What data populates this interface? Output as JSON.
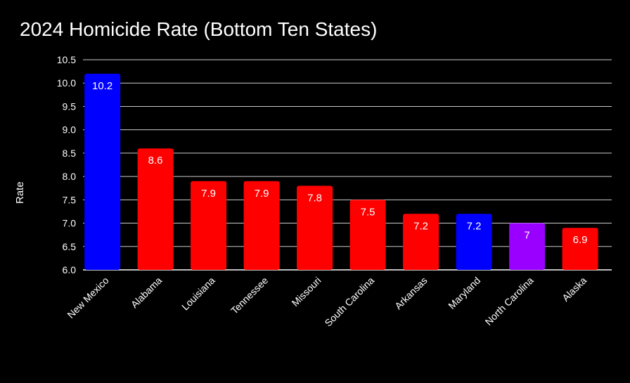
{
  "chart_data": {
    "type": "bar",
    "title": "2024 Homicide Rate (Bottom Ten States)",
    "xlabel": "",
    "ylabel": "Rate",
    "ylim": [
      6.0,
      10.5
    ],
    "yticks": [
      "6.0",
      "6.5",
      "7.0",
      "7.5",
      "8.0",
      "8.5",
      "9.0",
      "9.5",
      "10.0",
      "10.5"
    ],
    "grid": true,
    "categories": [
      "New Mexico",
      "Alabama",
      "Louisiana",
      "Tennessee",
      "Missouri",
      "South Carolina",
      "Arkansas",
      "Maryland",
      "North Carolina",
      "Alaska"
    ],
    "values": [
      10.2,
      8.6,
      7.9,
      7.9,
      7.8,
      7.5,
      7.2,
      7.2,
      7,
      6.9
    ],
    "data_labels": [
      "10.2",
      "8.6",
      "7.9",
      "7.9",
      "7.8",
      "7.5",
      "7.2",
      "7.2",
      "7",
      "6.9"
    ],
    "bar_colors": [
      "#0000ff",
      "#ff0000",
      "#ff0000",
      "#ff0000",
      "#ff0000",
      "#ff0000",
      "#ff0000",
      "#0000ff",
      "#9900ff",
      "#ff0000"
    ]
  }
}
